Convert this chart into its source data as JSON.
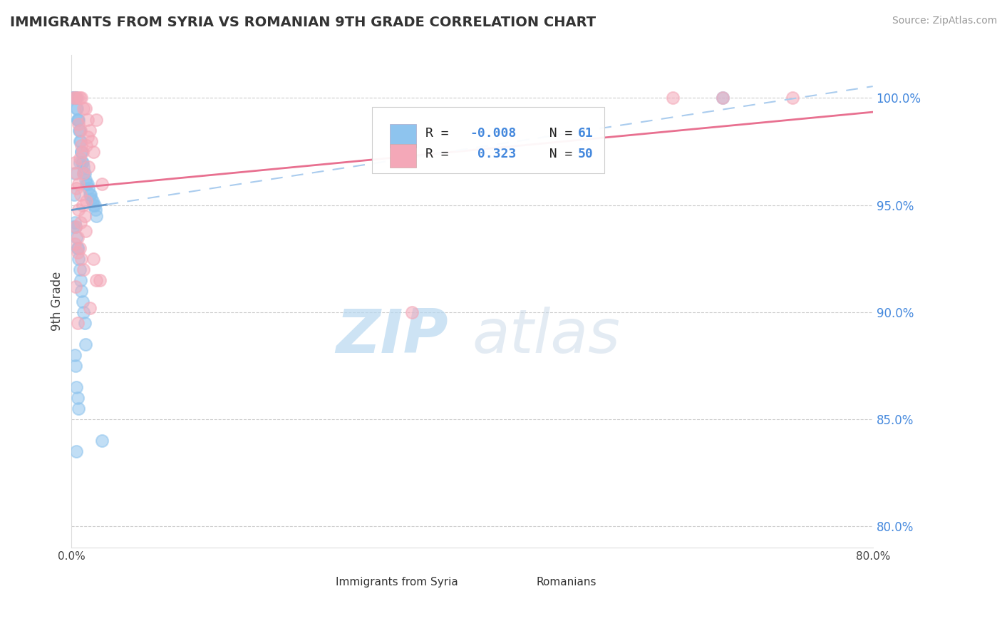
{
  "title": "IMMIGRANTS FROM SYRIA VS ROMANIAN 9TH GRADE CORRELATION CHART",
  "source": "Source: ZipAtlas.com",
  "ylabel": "9th Grade",
  "xlim": [
    0.0,
    80.0
  ],
  "ylim": [
    79.0,
    102.0
  ],
  "yticks": [
    80.0,
    85.0,
    90.0,
    95.0,
    100.0
  ],
  "ytick_labels": [
    "80.0%",
    "85.0%",
    "90.0%",
    "95.0%",
    "100.0%"
  ],
  "xticks": [
    0.0,
    16.0,
    32.0,
    48.0,
    64.0,
    80.0
  ],
  "xtick_labels": [
    "0.0%",
    "",
    "",
    "",
    "",
    "80.0%"
  ],
  "blue_R": -0.008,
  "blue_N": 61,
  "pink_R": 0.323,
  "pink_N": 50,
  "blue_color": "#8EC4EE",
  "pink_color": "#F4A8B8",
  "blue_line_color": "#6699CC",
  "pink_line_color": "#E87090",
  "blue_dash_color": "#AACCEE",
  "legend_blue_label": "Immigrants from Syria",
  "legend_pink_label": "Romanians",
  "watermark_zip": "ZIP",
  "watermark_atlas": "atlas",
  "background_color": "#ffffff",
  "grid_color": "#cccccc",
  "blue_x": [
    0.15,
    0.18,
    0.25,
    0.3,
    0.35,
    0.4,
    0.42,
    0.45,
    0.5,
    0.55,
    0.6,
    0.65,
    0.7,
    0.75,
    0.8,
    0.85,
    0.9,
    0.95,
    1.0,
    1.05,
    1.1,
    1.15,
    1.2,
    1.3,
    1.4,
    1.5,
    1.6,
    1.7,
    1.8,
    1.9,
    2.0,
    2.1,
    2.2,
    2.3,
    2.4,
    2.5,
    0.3,
    0.4,
    0.5,
    0.6,
    0.7,
    0.8,
    0.9,
    1.0,
    1.1,
    1.2,
    1.3,
    1.4,
    0.3,
    0.4,
    0.5,
    0.6,
    0.7,
    0.2,
    0.25,
    0.35,
    65.0,
    3.0,
    0.5,
    0.8,
    0.6
  ],
  "blue_y": [
    100.0,
    100.0,
    100.0,
    100.0,
    100.0,
    100.0,
    100.0,
    100.0,
    99.5,
    99.5,
    99.0,
    99.0,
    99.0,
    98.5,
    98.5,
    98.0,
    98.0,
    97.5,
    97.5,
    97.0,
    97.0,
    96.8,
    96.5,
    96.5,
    96.2,
    96.0,
    96.0,
    95.8,
    95.5,
    95.5,
    95.3,
    95.2,
    95.0,
    95.0,
    94.8,
    94.5,
    94.2,
    94.0,
    93.5,
    93.0,
    92.5,
    92.0,
    91.5,
    91.0,
    90.5,
    90.0,
    89.5,
    88.5,
    88.0,
    87.5,
    86.5,
    86.0,
    85.5,
    94.0,
    95.5,
    96.5,
    100.0,
    84.0,
    83.5,
    97.0,
    93.0
  ],
  "pink_x": [
    0.2,
    0.4,
    0.6,
    0.8,
    1.0,
    1.2,
    1.4,
    1.6,
    1.8,
    2.0,
    2.2,
    2.5,
    0.3,
    0.5,
    0.7,
    0.9,
    1.1,
    1.3,
    1.5,
    1.7,
    0.4,
    0.6,
    0.8,
    1.0,
    1.2,
    60.0,
    65.0,
    72.0,
    0.5,
    0.7,
    0.9,
    1.1,
    34.0,
    2.8,
    0.6,
    1.4,
    3.0,
    0.8,
    1.6,
    2.2,
    0.4,
    1.8,
    0.6,
    1.2,
    0.3,
    0.9,
    1.5,
    2.5,
    0.7,
    1.0
  ],
  "pink_y": [
    100.0,
    100.0,
    100.0,
    100.0,
    100.0,
    99.5,
    99.5,
    99.0,
    98.5,
    98.0,
    97.5,
    99.0,
    97.0,
    96.5,
    96.0,
    95.5,
    95.0,
    94.5,
    97.8,
    96.8,
    94.0,
    93.5,
    93.0,
    92.5,
    92.0,
    100.0,
    100.0,
    100.0,
    95.8,
    94.8,
    98.5,
    97.5,
    90.0,
    91.5,
    92.8,
    93.8,
    96.0,
    97.2,
    98.2,
    92.5,
    91.2,
    90.2,
    89.5,
    96.5,
    93.2,
    94.2,
    95.2,
    91.5,
    98.8,
    97.8
  ]
}
